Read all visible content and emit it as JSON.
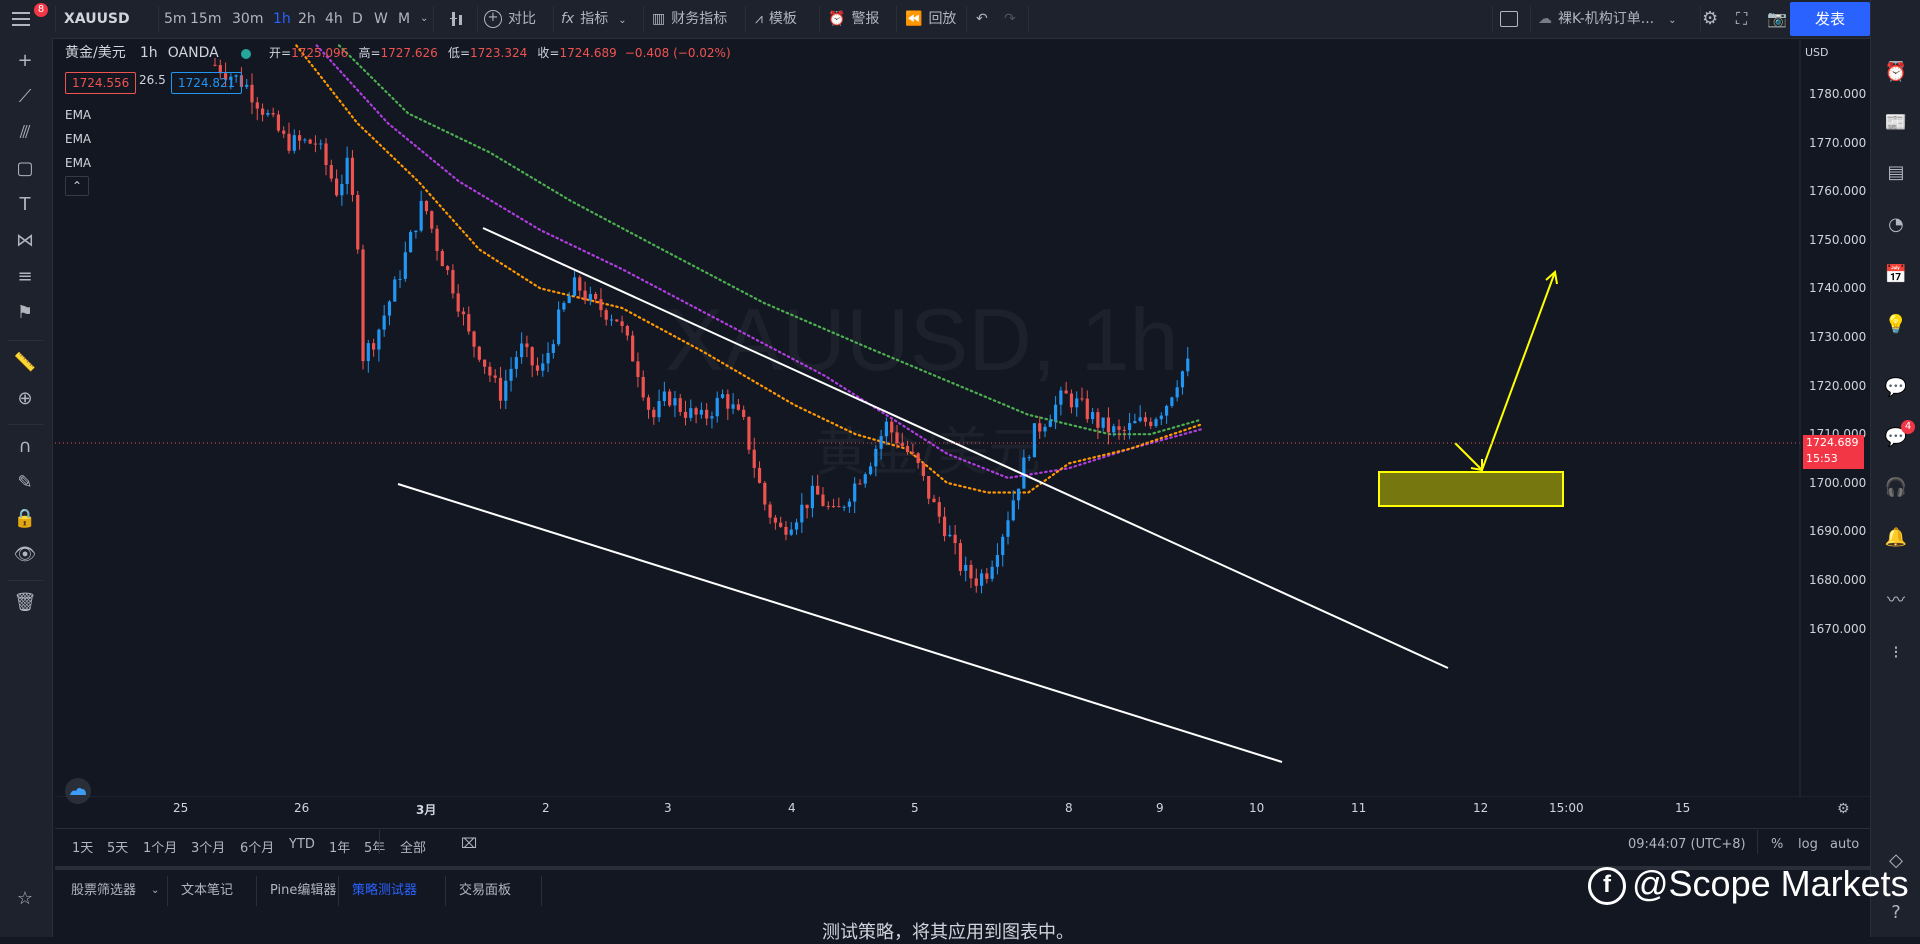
{
  "topbar": {
    "notification_count": "8",
    "symbol": "XAUUSD",
    "timeframes": [
      "5m",
      "15m",
      "30m",
      "1h",
      "2h",
      "4h",
      "D",
      "W",
      "M"
    ],
    "active_timeframe": "1h",
    "compare_label": "对比",
    "indicators_label": "指标",
    "financials_label": "财务指标",
    "templates_label": "模板",
    "alert_label": "警报",
    "replay_label": "回放",
    "layout_name": "裸K-机构订单...",
    "publish_label": "发表"
  },
  "legend": {
    "title": "黄金/美元",
    "interval": "1h",
    "source": "OANDA",
    "open_label": "开=",
    "open": "1725.096",
    "high_label": "高=",
    "high": "1727.626",
    "low_label": "低=",
    "low": "1723.324",
    "close_label": "收=",
    "close": "1724.689",
    "change": "−0.408 (−0.02%)",
    "bid": "1724.556",
    "spread": "26.5",
    "ask": "1724.821",
    "indicators": [
      "EMA",
      "EMA",
      "EMA"
    ]
  },
  "watermark": {
    "symbol_line": "XAUUSD, 1h",
    "name_line": "黄金/美元"
  },
  "price_axis": {
    "currency": "USD",
    "ticks": [
      "1780.000",
      "1770.000",
      "1760.000",
      "1750.000",
      "1740.000",
      "1730.000",
      "1720.000",
      "1710.000",
      "1700.000",
      "1690.000",
      "1680.000",
      "1670.000"
    ],
    "current_price": "1724.689",
    "countdown": "15:53"
  },
  "time_axis": {
    "ticks": [
      "25",
      "26",
      "3月",
      "2",
      "3",
      "4",
      "5",
      "8",
      "9",
      "10",
      "11",
      "12",
      "15:00",
      "15"
    ]
  },
  "range_bar": {
    "ranges": [
      "1天",
      "5天",
      "1个月",
      "3个月",
      "6个月",
      "YTD",
      "1年",
      "5年",
      "全部"
    ],
    "clock": "09:44:07 (UTC+8)",
    "percent_label": "%",
    "log_label": "log",
    "auto_label": "auto"
  },
  "bottom_panel": {
    "tabs": [
      "股票筛选器",
      "文本笔记",
      "Pine编辑器",
      "策略测试器",
      "交易面板"
    ],
    "active_tab": "策略测试器",
    "message": "测试策略，将其应用到图表中。"
  },
  "overlay_watermark": "@Scope Markets",
  "right_toolbar": {
    "chat_badge": "4"
  },
  "colors": {
    "background": "#131722",
    "up": "#2196f3",
    "down": "#ef5350",
    "ema_green": "#4caf50",
    "ema_purple": "#b03de0",
    "ema_orange": "#ff9800",
    "trendline": "#ffffff",
    "annotation": "#ffff00",
    "accent": "#2962ff"
  }
}
